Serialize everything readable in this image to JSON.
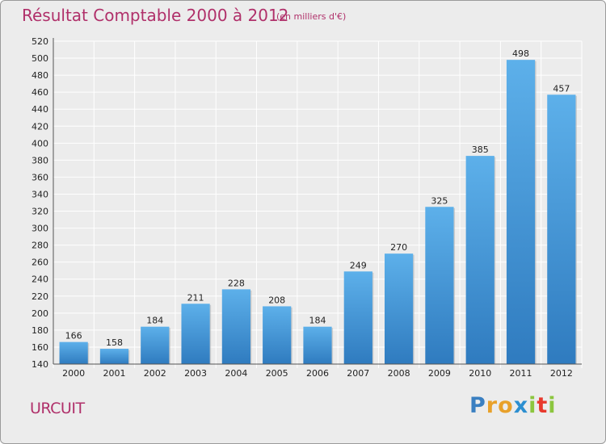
{
  "chart_data": {
    "type": "bar",
    "title": "Résultat Comptable 2000 à 2012",
    "subtitle": "(en milliers d'€)",
    "categories": [
      "2000",
      "2001",
      "2002",
      "2003",
      "2004",
      "2005",
      "2006",
      "2007",
      "2008",
      "2009",
      "2010",
      "2011",
      "2012"
    ],
    "values": [
      166,
      158,
      184,
      211,
      228,
      208,
      184,
      249,
      270,
      325,
      385,
      498,
      457
    ],
    "ylim": [
      140,
      520
    ],
    "ytick_step": 20,
    "grid": true,
    "xlabel": "",
    "ylabel": ""
  },
  "commune": "URCUIT",
  "logo": {
    "letters": [
      "P",
      "r",
      "o",
      "x",
      "i",
      "t",
      "i"
    ],
    "colors": [
      "#3a7fc1",
      "#e8a12a",
      "#e8a12a",
      "#2c8fd0",
      "#8cc63f",
      "#e8392d",
      "#8cc63f"
    ]
  },
  "colors": {
    "title": "#b0306a",
    "bar_top": "#5db0ea",
    "bar_bottom": "#2f7bbf",
    "grid": "#ffffff",
    "axis_text": "#222222"
  }
}
